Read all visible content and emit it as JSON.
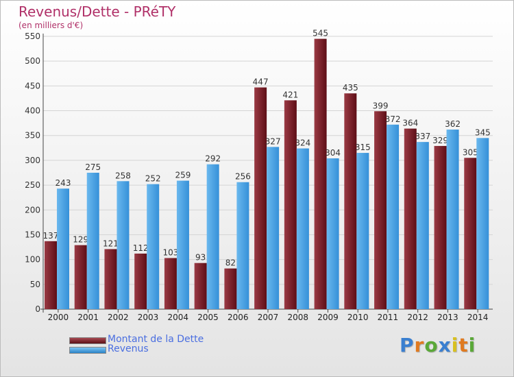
{
  "chart_data": {
    "type": "bar",
    "title": "Revenus/Dette - PRéTY",
    "subtitle": "(en milliers d'€)",
    "categories": [
      "2000",
      "2001",
      "2002",
      "2003",
      "2004",
      "2005",
      "2006",
      "2007",
      "2008",
      "2009",
      "2010",
      "2011",
      "2012",
      "2013",
      "2014"
    ],
    "series": [
      {
        "name": "Montant de la Dette",
        "color": "#7a1c24",
        "values": [
          137,
          129,
          121,
          112,
          103,
          93,
          82,
          447,
          421,
          545,
          435,
          399,
          364,
          329,
          305
        ]
      },
      {
        "name": "Revenus",
        "color": "#3d9de0",
        "values": [
          243,
          275,
          258,
          252,
          259,
          292,
          256,
          327,
          324,
          304,
          315,
          372,
          337,
          362,
          345
        ]
      }
    ],
    "ylim": [
      0,
      550
    ],
    "yticks": [
      0,
      50,
      100,
      150,
      200,
      250,
      300,
      350,
      400,
      450,
      500,
      550
    ],
    "grid": true,
    "legend": "bottom-left"
  },
  "logo": {
    "letters": [
      "P",
      "r",
      "o",
      "x",
      "i",
      "t",
      "i"
    ],
    "colors": [
      "#3a7fd0",
      "#e07a20",
      "#5aa838",
      "#3a7fd0",
      "#d8c020",
      "#e07a20",
      "#5aa838"
    ]
  }
}
